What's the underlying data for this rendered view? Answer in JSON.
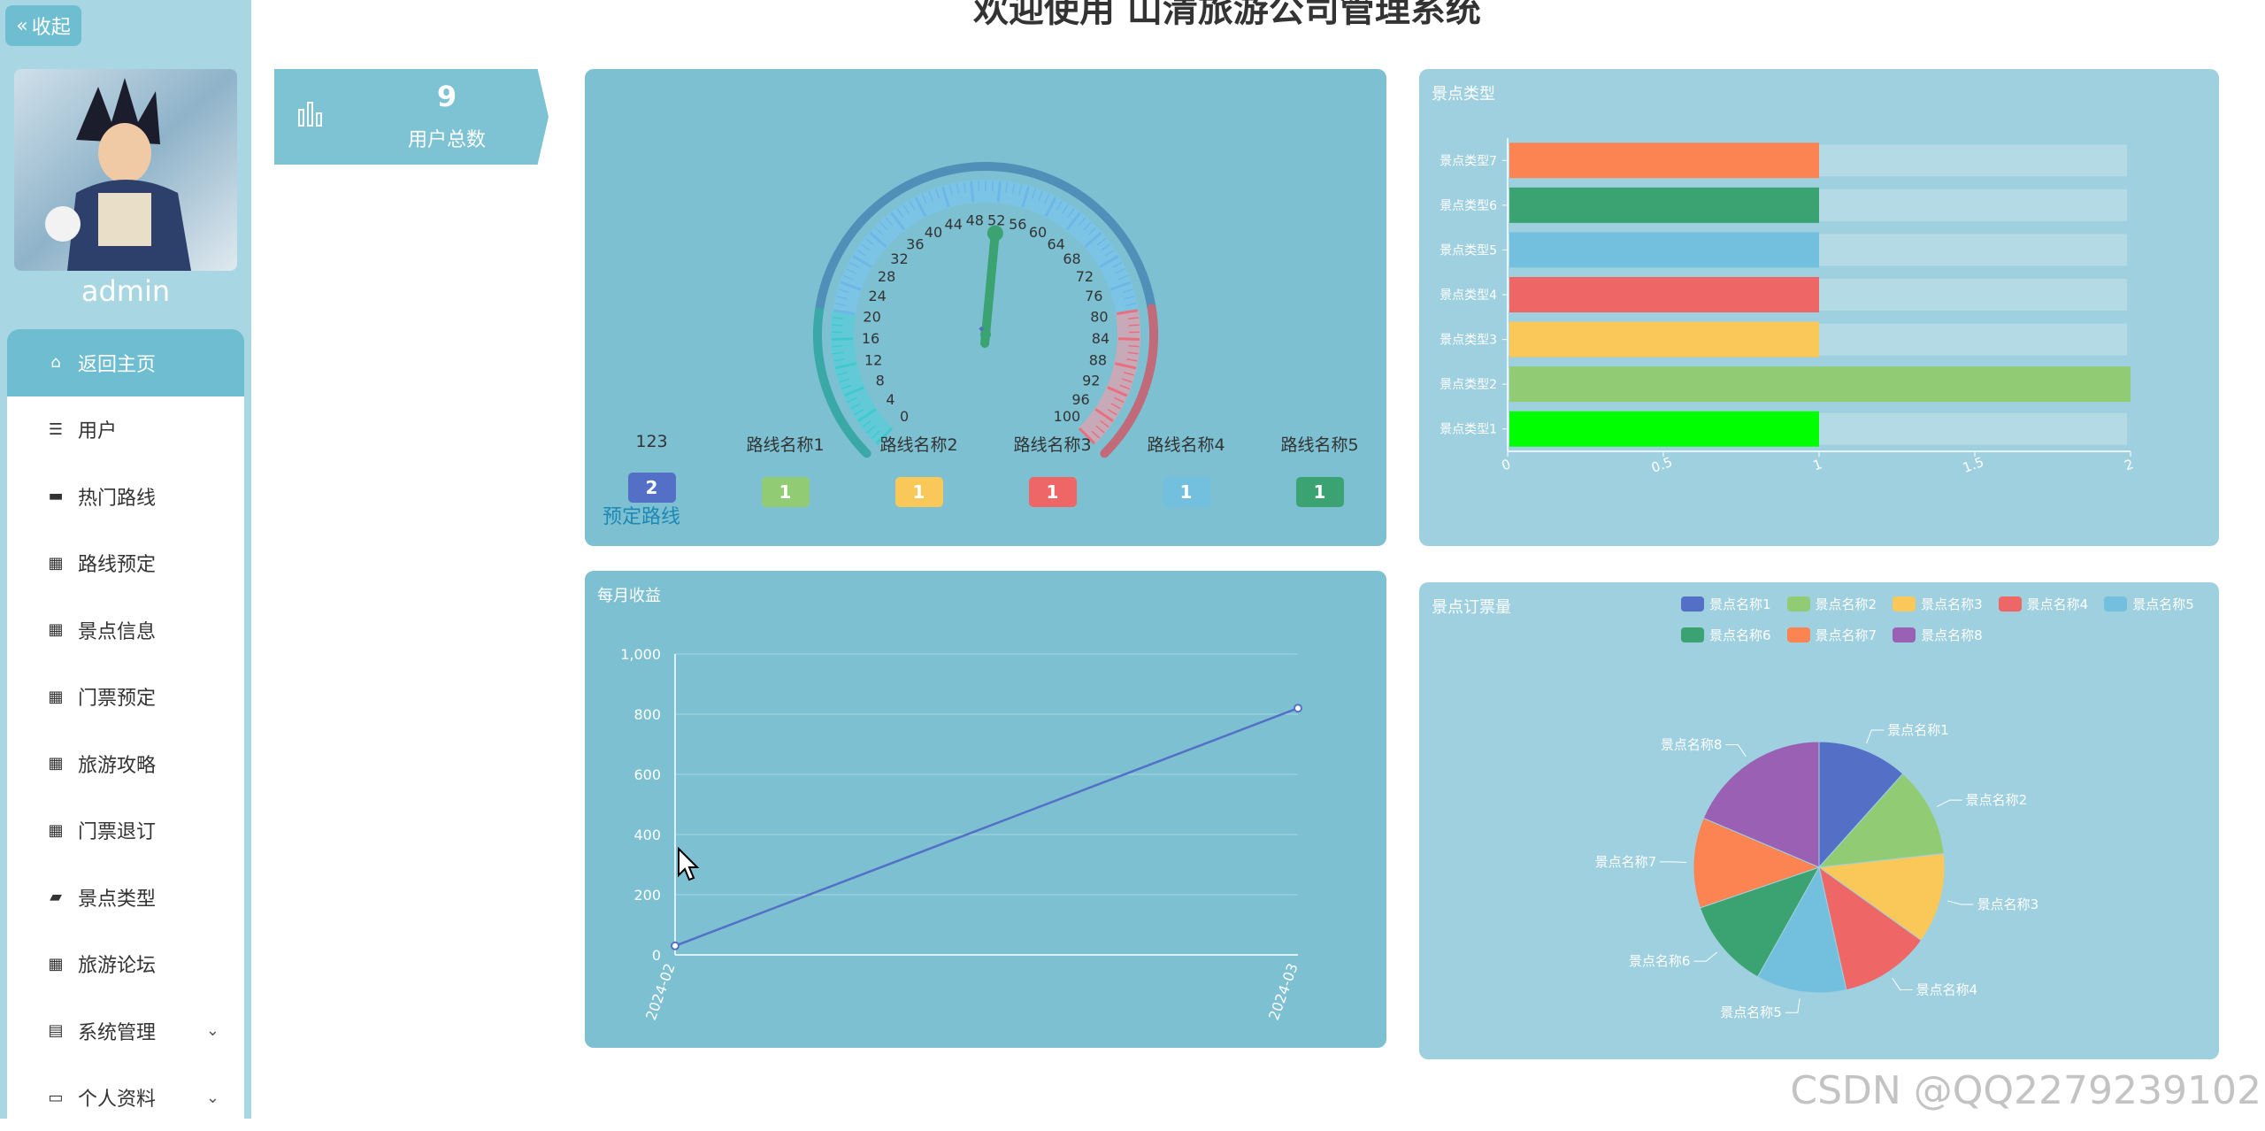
{
  "sidebar": {
    "collapse_label": "收起",
    "username": "admin",
    "items": [
      {
        "label": "返回主页",
        "icon": "home-icon",
        "glyph": "⌂"
      },
      {
        "label": "用户",
        "icon": "sliders-icon",
        "glyph": "☰"
      },
      {
        "label": "热门路线",
        "icon": "briefcase-icon",
        "glyph": "▬"
      },
      {
        "label": "路线预定",
        "icon": "grid-icon",
        "glyph": "▦"
      },
      {
        "label": "景点信息",
        "icon": "grid-icon",
        "glyph": "▦"
      },
      {
        "label": "门票预定",
        "icon": "grid-icon",
        "glyph": "▦"
      },
      {
        "label": "旅游攻略",
        "icon": "grid-icon",
        "glyph": "▦"
      },
      {
        "label": "门票退订",
        "icon": "grid-icon",
        "glyph": "▦"
      },
      {
        "label": "景点类型",
        "icon": "wallet-icon",
        "glyph": "▰"
      },
      {
        "label": "旅游论坛",
        "icon": "apps-icon",
        "glyph": "▦"
      },
      {
        "label": "系统管理",
        "icon": "clipboard-icon",
        "glyph": "▤"
      },
      {
        "label": "个人资料",
        "icon": "card-icon",
        "glyph": "▭"
      }
    ]
  },
  "header": {
    "title": "欢迎使用 山清旅游公司管理系统"
  },
  "stat": {
    "value": "9",
    "label": "用户总数"
  },
  "gauge_panel": {
    "gauge_value": 52,
    "gauge_max": 100,
    "ticks": [
      "0",
      "4",
      "8",
      "12",
      "16",
      "20",
      "24",
      "28",
      "32",
      "36",
      "40",
      "44",
      "48",
      "52",
      "56",
      "60",
      "64",
      "68",
      "72",
      "76",
      "80",
      "84",
      "88",
      "92",
      "96",
      "100"
    ],
    "routes": [
      {
        "name": "123",
        "count": "2",
        "color": "#5470c6"
      },
      {
        "name": "路线名称1",
        "count": "1",
        "color": "#91cc75"
      },
      {
        "name": "路线名称2",
        "count": "1",
        "color": "#fac858"
      },
      {
        "name": "路线名称3",
        "count": "1",
        "color": "#ee6666"
      },
      {
        "name": "路线名称4",
        "count": "1",
        "color": "#73c0de"
      },
      {
        "name": "路线名称5",
        "count": "1",
        "color": "#3ba272"
      }
    ],
    "link_label": "预定路线"
  },
  "charts": {
    "bar": {
      "type": "bar",
      "title": "景点类型",
      "categories": [
        "景点类型1",
        "景点类型2",
        "景点类型3",
        "景点类型4",
        "景点类型5",
        "景点类型6",
        "景点类型7"
      ],
      "values": [
        1,
        2,
        1,
        1,
        1,
        1,
        1
      ],
      "colors": [
        "#00ff00",
        "#91cc75",
        "#fac858",
        "#ee6666",
        "#73c0de",
        "#3ba272",
        "#fc8452"
      ],
      "xlim": [
        0,
        2
      ],
      "xticks": [
        "0",
        "0.5",
        "1",
        "1.5",
        "2"
      ]
    },
    "line": {
      "type": "line",
      "title": "每月收益",
      "x": [
        "2024-02",
        "2024-03"
      ],
      "values": [
        30,
        820
      ],
      "ylim": [
        0,
        1000
      ],
      "yticks": [
        "0",
        "200",
        "400",
        "600",
        "800",
        "1,000"
      ]
    },
    "pie": {
      "type": "pie",
      "title": "景点订票量",
      "labels": [
        "景点名称1",
        "景点名称2",
        "景点名称3",
        "景点名称4",
        "景点名称5",
        "景点名称6",
        "景点名称7",
        "景点名称8"
      ],
      "values": [
        1,
        1,
        1,
        1,
        1,
        1,
        1,
        1.6
      ],
      "colors": [
        "#5470c6",
        "#91cc75",
        "#fac858",
        "#ee6666",
        "#73c0de",
        "#3ba272",
        "#fc8452",
        "#9a60b4"
      ]
    }
  },
  "watermark": "CSDN @QQ2279239102"
}
